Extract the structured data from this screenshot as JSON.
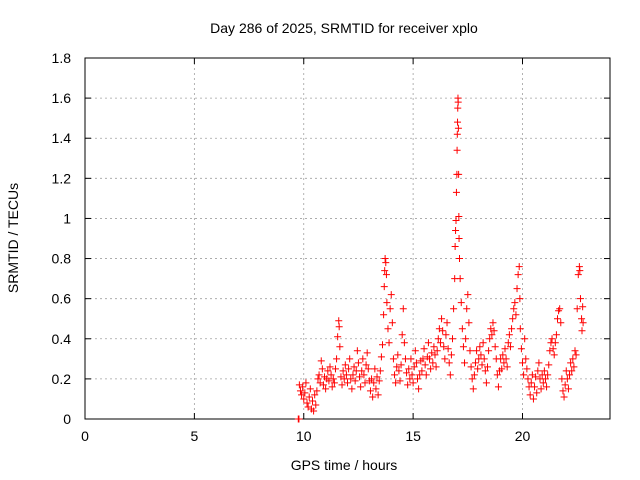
{
  "chart_data": {
    "type": "scatter",
    "title": "Day 286 of 2025, SRMTID for receiver xplo",
    "xlabel": "GPS time / hours",
    "ylabel": "SRMTID / TECUs",
    "xlim": [
      0,
      24
    ],
    "ylim": [
      0,
      1.8
    ],
    "x_ticks": [
      0,
      5,
      10,
      15,
      20
    ],
    "y_ticks": [
      0,
      0.2,
      0.4,
      0.6,
      0.8,
      1,
      1.2,
      1.4,
      1.6,
      1.8
    ],
    "x_tick_labels": [
      "0",
      "5",
      "10",
      "15",
      "20"
    ],
    "y_tick_labels": [
      "0",
      "0.2",
      "0.4",
      "0.6",
      "0.8",
      "1",
      "1.2",
      "1.4",
      "1.6",
      "1.8"
    ],
    "grid": true,
    "marker": "+",
    "color": "#ff0000",
    "series": [
      {
        "name": "SRMTID",
        "points": [
          [
            9.75,
            0.0
          ],
          [
            9.78,
            0.0
          ],
          [
            9.8,
            0.17
          ],
          [
            9.85,
            0.14
          ],
          [
            9.9,
            0.12
          ],
          [
            9.95,
            0.16
          ],
          [
            10.0,
            0.1
          ],
          [
            10.05,
            0.13
          ],
          [
            10.1,
            0.18
          ],
          [
            10.15,
            0.08
          ],
          [
            10.2,
            0.06
          ],
          [
            10.25,
            0.11
          ],
          [
            10.3,
            0.15
          ],
          [
            10.35,
            0.05
          ],
          [
            10.4,
            0.09
          ],
          [
            10.45,
            0.04
          ],
          [
            10.5,
            0.12
          ],
          [
            10.55,
            0.07
          ],
          [
            10.6,
            0.14
          ],
          [
            10.65,
            0.2
          ],
          [
            10.7,
            0.22
          ],
          [
            10.75,
            0.18
          ],
          [
            10.8,
            0.29
          ],
          [
            10.85,
            0.25
          ],
          [
            10.9,
            0.17
          ],
          [
            10.95,
            0.21
          ],
          [
            11.0,
            0.15
          ],
          [
            11.05,
            0.2
          ],
          [
            11.1,
            0.24
          ],
          [
            11.15,
            0.19
          ],
          [
            11.2,
            0.26
          ],
          [
            11.25,
            0.22
          ],
          [
            11.3,
            0.16
          ],
          [
            11.35,
            0.2
          ],
          [
            11.4,
            0.18
          ],
          [
            11.45,
            0.25
          ],
          [
            11.5,
            0.3
          ],
          [
            11.55,
            0.41
          ],
          [
            11.6,
            0.49
          ],
          [
            11.62,
            0.46
          ],
          [
            11.65,
            0.36
          ],
          [
            11.7,
            0.21
          ],
          [
            11.75,
            0.17
          ],
          [
            11.8,
            0.24
          ],
          [
            11.85,
            0.2
          ],
          [
            11.9,
            0.27
          ],
          [
            11.95,
            0.22
          ],
          [
            12.0,
            0.18
          ],
          [
            12.05,
            0.25
          ],
          [
            12.1,
            0.3
          ],
          [
            12.15,
            0.2
          ],
          [
            12.2,
            0.15
          ],
          [
            12.25,
            0.22
          ],
          [
            12.3,
            0.26
          ],
          [
            12.35,
            0.19
          ],
          [
            12.4,
            0.24
          ],
          [
            12.45,
            0.34
          ],
          [
            12.5,
            0.28
          ],
          [
            12.55,
            0.21
          ],
          [
            12.6,
            0.16
          ],
          [
            12.65,
            0.24
          ],
          [
            12.7,
            0.3
          ],
          [
            12.75,
            0.22
          ],
          [
            12.8,
            0.18
          ],
          [
            12.85,
            0.27
          ],
          [
            12.9,
            0.33
          ],
          [
            12.95,
            0.25
          ],
          [
            13.0,
            0.19
          ],
          [
            13.05,
            0.14
          ],
          [
            13.1,
            0.2
          ],
          [
            13.15,
            0.11
          ],
          [
            13.2,
            0.18
          ],
          [
            13.25,
            0.25
          ],
          [
            13.3,
            0.15
          ],
          [
            13.35,
            0.21
          ],
          [
            13.4,
            0.12
          ],
          [
            13.45,
            0.19
          ],
          [
            13.5,
            0.24
          ],
          [
            13.55,
            0.31
          ],
          [
            13.6,
            0.37
          ],
          [
            13.65,
            0.52
          ],
          [
            13.68,
            0.66
          ],
          [
            13.7,
            0.74
          ],
          [
            13.72,
            0.8
          ],
          [
            13.75,
            0.78
          ],
          [
            13.78,
            0.72
          ],
          [
            13.8,
            0.58
          ],
          [
            13.85,
            0.45
          ],
          [
            13.9,
            0.38
          ],
          [
            13.95,
            0.55
          ],
          [
            14.0,
            0.62
          ],
          [
            14.05,
            0.48
          ],
          [
            14.1,
            0.3
          ],
          [
            14.15,
            0.22
          ],
          [
            14.2,
            0.18
          ],
          [
            14.25,
            0.26
          ],
          [
            14.3,
            0.32
          ],
          [
            14.35,
            0.24
          ],
          [
            14.4,
            0.19
          ],
          [
            14.45,
            0.27
          ],
          [
            14.5,
            0.42
          ],
          [
            14.55,
            0.55
          ],
          [
            14.6,
            0.38
          ],
          [
            14.65,
            0.3
          ],
          [
            14.7,
            0.23
          ],
          [
            14.75,
            0.17
          ],
          [
            14.8,
            0.25
          ],
          [
            14.85,
            0.2
          ],
          [
            14.9,
            0.3
          ],
          [
            14.95,
            0.22
          ],
          [
            15.0,
            0.18
          ],
          [
            15.05,
            0.26
          ],
          [
            15.1,
            0.34
          ],
          [
            15.15,
            0.28
          ],
          [
            15.2,
            0.2
          ],
          [
            15.25,
            0.15
          ],
          [
            15.3,
            0.22
          ],
          [
            15.35,
            0.29
          ],
          [
            15.4,
            0.24
          ],
          [
            15.45,
            0.3
          ],
          [
            15.5,
            0.35
          ],
          [
            15.55,
            0.27
          ],
          [
            15.6,
            0.22
          ],
          [
            15.65,
            0.31
          ],
          [
            15.7,
            0.38
          ],
          [
            15.75,
            0.3
          ],
          [
            15.8,
            0.25
          ],
          [
            15.85,
            0.33
          ],
          [
            15.9,
            0.28
          ],
          [
            15.95,
            0.36
          ],
          [
            16.0,
            0.32
          ],
          [
            16.05,
            0.26
          ],
          [
            16.1,
            0.34
          ],
          [
            16.15,
            0.4
          ],
          [
            16.2,
            0.45
          ],
          [
            16.25,
            0.38
          ],
          [
            16.3,
            0.5
          ],
          [
            16.35,
            0.44
          ],
          [
            16.4,
            0.36
          ],
          [
            16.45,
            0.3
          ],
          [
            16.5,
            0.42
          ],
          [
            16.55,
            0.48
          ],
          [
            16.6,
            0.35
          ],
          [
            16.65,
            0.28
          ],
          [
            16.7,
            0.22
          ],
          [
            16.75,
            0.32
          ],
          [
            16.8,
            0.4
          ],
          [
            16.85,
            0.55
          ],
          [
            16.9,
            0.7
          ],
          [
            16.92,
            0.86
          ],
          [
            16.94,
            0.94
          ],
          [
            16.96,
            0.99
          ],
          [
            16.98,
            1.13
          ],
          [
            17.0,
            1.22
          ],
          [
            17.01,
            1.34
          ],
          [
            17.02,
            1.42
          ],
          [
            17.03,
            1.48
          ],
          [
            17.04,
            1.55
          ],
          [
            17.05,
            1.6
          ],
          [
            17.06,
            1.58
          ],
          [
            17.07,
            1.45
          ],
          [
            17.08,
            1.22
          ],
          [
            17.09,
            1.01
          ],
          [
            17.1,
            0.9
          ],
          [
            17.12,
            0.8
          ],
          [
            17.15,
            0.7
          ],
          [
            17.2,
            0.58
          ],
          [
            17.25,
            0.45
          ],
          [
            17.3,
            0.36
          ],
          [
            17.35,
            0.28
          ],
          [
            17.4,
            0.4
          ],
          [
            17.45,
            0.55
          ],
          [
            17.5,
            0.62
          ],
          [
            17.55,
            0.48
          ],
          [
            17.6,
            0.34
          ],
          [
            17.65,
            0.26
          ],
          [
            17.7,
            0.2
          ],
          [
            17.75,
            0.15
          ],
          [
            17.8,
            0.22
          ],
          [
            17.85,
            0.28
          ],
          [
            17.9,
            0.34
          ],
          [
            17.95,
            0.25
          ],
          [
            18.0,
            0.3
          ],
          [
            18.05,
            0.36
          ],
          [
            18.1,
            0.32
          ],
          [
            18.15,
            0.27
          ],
          [
            18.2,
            0.38
          ],
          [
            18.25,
            0.3
          ],
          [
            18.3,
            0.24
          ],
          [
            18.35,
            0.18
          ],
          [
            18.4,
            0.26
          ],
          [
            18.45,
            0.34
          ],
          [
            18.5,
            0.4
          ],
          [
            18.55,
            0.45
          ],
          [
            18.6,
            0.42
          ],
          [
            18.65,
            0.48
          ],
          [
            18.7,
            0.44
          ],
          [
            18.75,
            0.36
          ],
          [
            18.8,
            0.3
          ],
          [
            18.85,
            0.22
          ],
          [
            18.9,
            0.16
          ],
          [
            18.95,
            0.24
          ],
          [
            19.0,
            0.3
          ],
          [
            19.05,
            0.25
          ],
          [
            19.1,
            0.32
          ],
          [
            19.15,
            0.28
          ],
          [
            19.2,
            0.35
          ],
          [
            19.25,
            0.3
          ],
          [
            19.3,
            0.26
          ],
          [
            19.35,
            0.38
          ],
          [
            19.4,
            0.42
          ],
          [
            19.45,
            0.36
          ],
          [
            19.5,
            0.45
          ],
          [
            19.55,
            0.5
          ],
          [
            19.6,
            0.55
          ],
          [
            19.65,
            0.58
          ],
          [
            19.7,
            0.52
          ],
          [
            19.75,
            0.65
          ],
          [
            19.8,
            0.72
          ],
          [
            19.85,
            0.76
          ],
          [
            19.88,
            0.6
          ],
          [
            19.9,
            0.45
          ],
          [
            19.95,
            0.35
          ],
          [
            20.0,
            0.28
          ],
          [
            20.05,
            0.22
          ],
          [
            20.1,
            0.4
          ],
          [
            20.15,
            0.3
          ],
          [
            20.2,
            0.25
          ],
          [
            20.25,
            0.2
          ],
          [
            20.3,
            0.16
          ],
          [
            20.35,
            0.12
          ],
          [
            20.4,
            0.18
          ],
          [
            20.45,
            0.22
          ],
          [
            20.5,
            0.1
          ],
          [
            20.55,
            0.16
          ],
          [
            20.6,
            0.21
          ],
          [
            20.65,
            0.13
          ],
          [
            20.7,
            0.24
          ],
          [
            20.75,
            0.28
          ],
          [
            20.8,
            0.2
          ],
          [
            20.85,
            0.15
          ],
          [
            20.9,
            0.22
          ],
          [
            20.95,
            0.18
          ],
          [
            21.0,
            0.24
          ],
          [
            21.05,
            0.2
          ],
          [
            21.1,
            0.16
          ],
          [
            21.15,
            0.22
          ],
          [
            21.2,
            0.27
          ],
          [
            21.25,
            0.34
          ],
          [
            21.3,
            0.38
          ],
          [
            21.35,
            0.4
          ],
          [
            21.4,
            0.35
          ],
          [
            21.45,
            0.32
          ],
          [
            21.5,
            0.38
          ],
          [
            21.55,
            0.42
          ],
          [
            21.6,
            0.5
          ],
          [
            21.65,
            0.54
          ],
          [
            21.7,
            0.55
          ],
          [
            21.75,
            0.48
          ],
          [
            21.8,
            0.2
          ],
          [
            21.85,
            0.14
          ],
          [
            21.9,
            0.11
          ],
          [
            21.95,
            0.17
          ],
          [
            22.0,
            0.24
          ],
          [
            22.05,
            0.2
          ],
          [
            22.1,
            0.15
          ],
          [
            22.15,
            0.22
          ],
          [
            22.2,
            0.28
          ],
          [
            22.25,
            0.24
          ],
          [
            22.3,
            0.3
          ],
          [
            22.35,
            0.26
          ],
          [
            22.4,
            0.34
          ],
          [
            22.45,
            0.32
          ],
          [
            22.5,
            0.55
          ],
          [
            22.55,
            0.72
          ],
          [
            22.6,
            0.76
          ],
          [
            22.62,
            0.74
          ],
          [
            22.65,
            0.6
          ],
          [
            22.7,
            0.5
          ],
          [
            22.72,
            0.44
          ],
          [
            22.75,
            0.56
          ],
          [
            22.77,
            0.48
          ]
        ]
      }
    ]
  }
}
